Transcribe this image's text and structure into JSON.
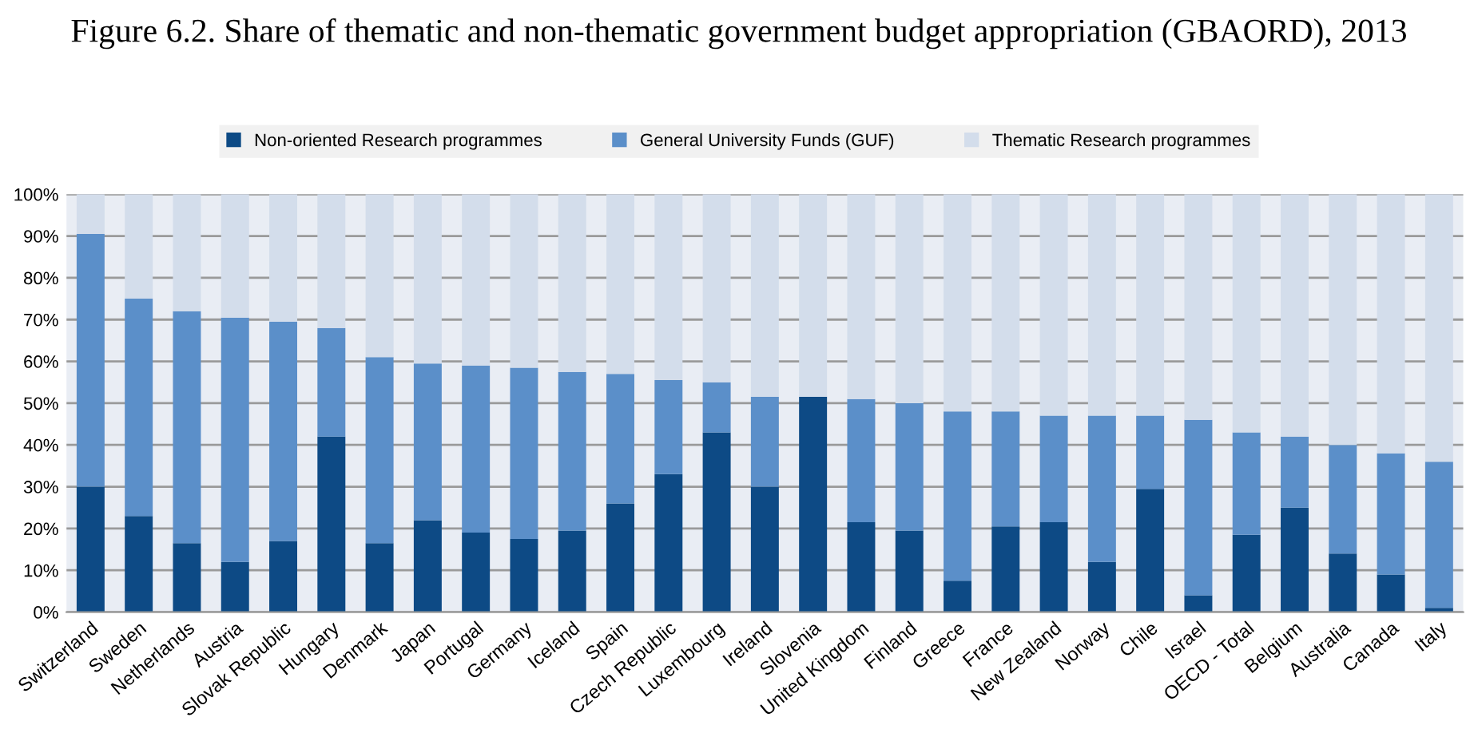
{
  "chart_data": {
    "type": "bar",
    "stacked": true,
    "title": "Figure 6.2. Share of thematic and non-thematic government budget appropriation (GBAORD), 2013",
    "categories": [
      "Switzerland",
      "Sweden",
      "Netherlands",
      "Austria",
      "Slovak Republic",
      "Hungary",
      "Denmark",
      "Japan",
      "Portugal",
      "Germany",
      "Iceland",
      "Spain",
      "Czech Republic",
      "Luxembourg",
      "Ireland",
      "Slovenia",
      "United Kingdom",
      "Finland",
      "Greece",
      "France",
      "New Zealand",
      "Norway",
      "Chile",
      "Israel",
      "OECD - Total",
      "Belgium",
      "Australia",
      "Canada",
      "Italy"
    ],
    "series": [
      {
        "name": "Non-oriented Research programmes",
        "color": "#0d4a85",
        "values": [
          30,
          23,
          16.5,
          12,
          17,
          42,
          16.5,
          22,
          19,
          17.5,
          19.5,
          26,
          33,
          43,
          30,
          51.5,
          21.5,
          19.5,
          7.5,
          20.5,
          21.5,
          12,
          29.5,
          4,
          18.5,
          25,
          14,
          9,
          1
        ]
      },
      {
        "name": "General University Funds (GUF)",
        "color": "#5b8fc9",
        "values": [
          60.5,
          52,
          55.5,
          58.5,
          52.5,
          26,
          44.5,
          37.5,
          40,
          41,
          38,
          31,
          22.5,
          12,
          21.5,
          0,
          29.5,
          30.5,
          40.5,
          27.5,
          25.5,
          35,
          17.5,
          42,
          24.5,
          17,
          26,
          29,
          35
        ]
      },
      {
        "name": "Thematic Research programmes",
        "color": "#d3ddeb",
        "values": [
          9.5,
          25,
          28,
          29.5,
          30.5,
          32,
          39,
          40.5,
          41,
          41.5,
          42.5,
          43,
          44.5,
          45,
          48.5,
          48.5,
          49,
          50,
          52,
          52,
          53,
          53,
          53,
          54,
          57,
          58,
          60,
          62,
          64
        ]
      }
    ],
    "ylim": [
      0,
      100
    ],
    "yticks": [
      {
        "value": 0,
        "label": "0%"
      },
      {
        "value": 10,
        "label": "10%"
      },
      {
        "value": 20,
        "label": "20%"
      },
      {
        "value": 30,
        "label": "30%"
      },
      {
        "value": 40,
        "label": "40%"
      },
      {
        "value": 50,
        "label": "50%"
      },
      {
        "value": 60,
        "label": "60%"
      },
      {
        "value": 70,
        "label": "70%"
      },
      {
        "value": 80,
        "label": "80%"
      },
      {
        "value": 90,
        "label": "90%"
      },
      {
        "value": 100,
        "label": "100%"
      }
    ],
    "grid": "y",
    "legend": "top"
  }
}
